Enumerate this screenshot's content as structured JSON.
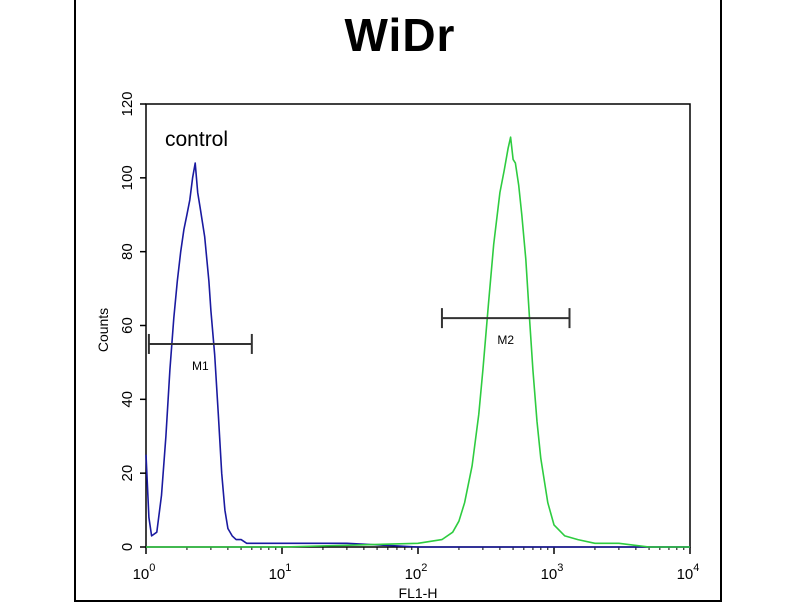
{
  "chart_data": {
    "type": "line",
    "title": "WiDr",
    "xlabel": "FL1-H",
    "ylabel": "Counts",
    "x_scale": "log",
    "xlim": [
      1,
      10000
    ],
    "ylim": [
      0,
      120
    ],
    "y_ticks": [
      0,
      20,
      40,
      60,
      80,
      100,
      120
    ],
    "y_tick_labels": [
      "0",
      "20",
      "40",
      "60",
      "80",
      "100",
      "120"
    ],
    "x_ticks": [
      1,
      10,
      100,
      1000,
      10000
    ],
    "x_tick_labels": [
      {
        "base": "10",
        "exp": "0"
      },
      {
        "base": "10",
        "exp": "1"
      },
      {
        "base": "10",
        "exp": "2"
      },
      {
        "base": "10",
        "exp": "3"
      },
      {
        "base": "10",
        "exp": "4"
      }
    ],
    "grid": false,
    "annotation": "control",
    "series": [
      {
        "color": "#1a1aa0",
        "x": [
          1.0,
          1.05,
          1.1,
          1.2,
          1.3,
          1.4,
          1.5,
          1.6,
          1.7,
          1.8,
          1.9,
          2.0,
          2.1,
          2.2,
          2.3,
          2.4,
          2.5,
          2.6,
          2.7,
          2.8,
          2.9,
          3.0,
          3.2,
          3.4,
          3.6,
          3.8,
          4.0,
          4.3,
          4.6,
          5.0,
          5.5,
          6.0,
          7.0,
          8.0,
          10,
          15,
          30,
          100,
          1000,
          10000
        ],
        "y": [
          25,
          8,
          3,
          4,
          14,
          30,
          48,
          62,
          72,
          80,
          86,
          90,
          94,
          100,
          104,
          96,
          92,
          88,
          84,
          78,
          72,
          64,
          52,
          36,
          20,
          10,
          5,
          3,
          2,
          2,
          1,
          1,
          1,
          1,
          1,
          1,
          1,
          0,
          0,
          0
        ]
      },
      {
        "color": "#2ecc40",
        "x": [
          1,
          10,
          100,
          150,
          180,
          200,
          220,
          250,
          280,
          300,
          330,
          360,
          400,
          430,
          460,
          480,
          500,
          520,
          550,
          580,
          620,
          660,
          700,
          750,
          800,
          900,
          1000,
          1200,
          1500,
          2000,
          3000,
          5000,
          10000
        ],
        "y": [
          0,
          0,
          1,
          2,
          4,
          7,
          12,
          22,
          36,
          48,
          66,
          82,
          96,
          102,
          108,
          111,
          105,
          104,
          98,
          90,
          78,
          62,
          48,
          34,
          24,
          12,
          6,
          3,
          2,
          1,
          1,
          0,
          0
        ]
      }
    ],
    "markers": [
      {
        "label": "M1",
        "x_start": 1.05,
        "x_end": 6.0,
        "y": 55
      },
      {
        "label": "M2",
        "x_start": 150,
        "x_end": 1300,
        "y": 62
      }
    ]
  }
}
